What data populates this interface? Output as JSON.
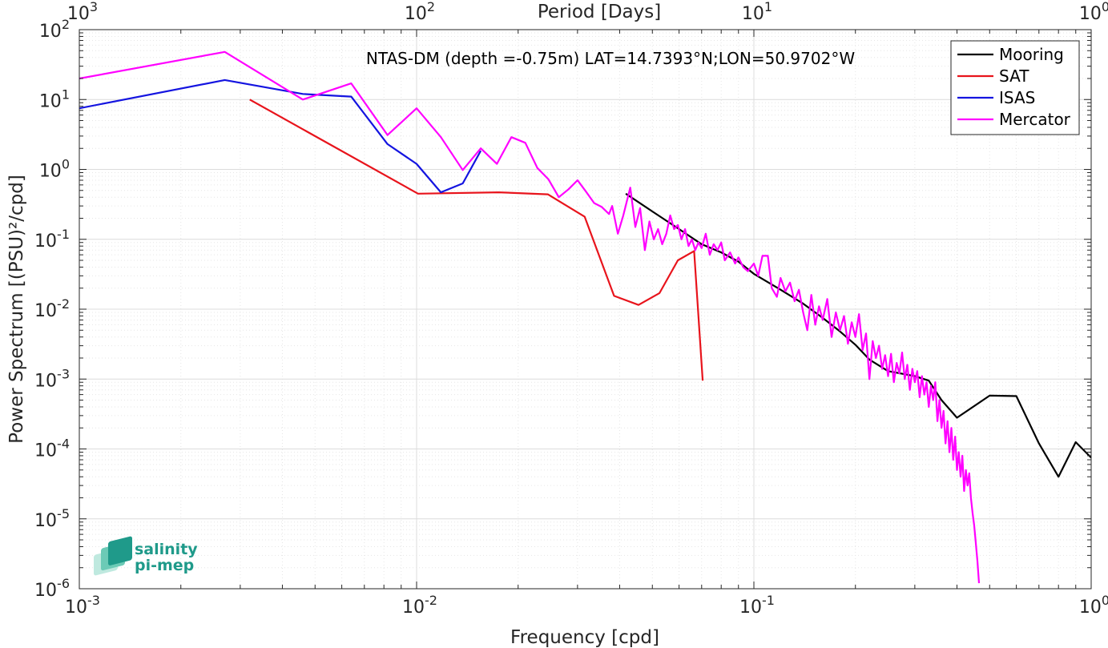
{
  "chart_data": {
    "type": "line",
    "title": "NTAS-DM (depth =-0.75m) LAT=14.7393°N;LON=50.9702°W",
    "xlabel": "Frequency [cpd]",
    "ylabel": "Power Spectrum [(PSU)²/cpd]",
    "x2label": "Period [Days]",
    "xscale": "log",
    "yscale": "log",
    "xlim": [
      0.001,
      1
    ],
    "ylim": [
      1e-06,
      100
    ],
    "grid": true,
    "legend_position": "top-right",
    "x_ticks": [
      {
        "value": 0.001,
        "base": "10",
        "exp": "-3"
      },
      {
        "value": 0.01,
        "base": "10",
        "exp": "-2"
      },
      {
        "value": 0.1,
        "base": "10",
        "exp": "-1"
      },
      {
        "value": 1,
        "base": "10",
        "exp": "0"
      }
    ],
    "x2_ticks": [
      {
        "value": 0.001,
        "base": "10",
        "exp": "3"
      },
      {
        "value": 0.01,
        "base": "10",
        "exp": "2"
      },
      {
        "value": 0.1,
        "base": "10",
        "exp": "1"
      },
      {
        "value": 1,
        "base": "10",
        "exp": "0"
      }
    ],
    "y_ticks": [
      {
        "value": 100,
        "base": "10",
        "exp": "2"
      },
      {
        "value": 10,
        "base": "10",
        "exp": "1"
      },
      {
        "value": 1,
        "base": "10",
        "exp": "0"
      },
      {
        "value": 0.1,
        "base": "10",
        "exp": "-1"
      },
      {
        "value": 0.01,
        "base": "10",
        "exp": "-2"
      },
      {
        "value": 0.001,
        "base": "10",
        "exp": "-3"
      },
      {
        "value": 0.0001,
        "base": "10",
        "exp": "-4"
      },
      {
        "value": 1e-05,
        "base": "10",
        "exp": "-5"
      },
      {
        "value": 1e-06,
        "base": "10",
        "exp": "-6"
      }
    ],
    "series": [
      {
        "name": "Mooring",
        "color": "#000000",
        "points": [
          [
            0.0417,
            0.45
          ],
          [
            0.05,
            0.25
          ],
          [
            0.06,
            0.14
          ],
          [
            0.07,
            0.085
          ],
          [
            0.08,
            0.065
          ],
          [
            0.09,
            0.048
          ],
          [
            0.1,
            0.032
          ],
          [
            0.12,
            0.019
          ],
          [
            0.14,
            0.012
          ],
          [
            0.16,
            0.0075
          ],
          [
            0.18,
            0.0048
          ],
          [
            0.2,
            0.0031
          ],
          [
            0.22,
            0.0019
          ],
          [
            0.25,
            0.0013
          ],
          [
            0.3,
            0.0011
          ],
          [
            0.33,
            0.00095
          ],
          [
            0.36,
            0.0005
          ],
          [
            0.4,
            0.00028
          ],
          [
            0.5,
            0.00058
          ],
          [
            0.6,
            0.00057
          ],
          [
            0.7,
            0.00012
          ],
          [
            0.8,
            4e-05
          ],
          [
            0.9,
            0.000125
          ],
          [
            1.0,
            7.5e-05
          ]
        ]
      },
      {
        "name": "SAT",
        "color": "#e8141c",
        "points": [
          [
            0.0032,
            10.0
          ],
          [
            0.0101,
            0.45
          ],
          [
            0.0175,
            0.47
          ],
          [
            0.0245,
            0.44
          ],
          [
            0.0315,
            0.21
          ],
          [
            0.0385,
            0.0155
          ],
          [
            0.0455,
            0.0115
          ],
          [
            0.0525,
            0.017
          ],
          [
            0.0595,
            0.05
          ],
          [
            0.0665,
            0.068
          ],
          [
            0.0705,
            0.00095
          ]
        ]
      },
      {
        "name": "ISAS",
        "color": "#1414e0",
        "points": [
          [
            0.001,
            7.5
          ],
          [
            0.0027,
            19.0
          ],
          [
            0.0046,
            12.0
          ],
          [
            0.0064,
            11.0
          ],
          [
            0.0082,
            2.3
          ],
          [
            0.01,
            1.2
          ],
          [
            0.0118,
            0.47
          ],
          [
            0.0137,
            0.63
          ],
          [
            0.0155,
            1.85
          ]
        ]
      },
      {
        "name": "Mercator",
        "color": "#ff00ff",
        "points": [
          [
            0.001,
            20.0
          ],
          [
            0.0027,
            48.0
          ],
          [
            0.0046,
            10.0
          ],
          [
            0.0064,
            17.0
          ],
          [
            0.0082,
            3.1
          ],
          [
            0.01,
            7.5
          ],
          [
            0.0118,
            2.9
          ],
          [
            0.0137,
            0.98
          ],
          [
            0.0155,
            2.0
          ],
          [
            0.0173,
            1.2
          ],
          [
            0.0191,
            2.9
          ],
          [
            0.021,
            2.4
          ],
          [
            0.0228,
            1.05
          ],
          [
            0.0246,
            0.72
          ],
          [
            0.0264,
            0.4
          ],
          [
            0.0282,
            0.52
          ],
          [
            0.03,
            0.7
          ],
          [
            0.0318,
            0.48
          ],
          [
            0.0336,
            0.33
          ],
          [
            0.0354,
            0.29
          ],
          [
            0.0372,
            0.23
          ],
          [
            0.038,
            0.3
          ],
          [
            0.0395,
            0.12
          ],
          [
            0.041,
            0.22
          ],
          [
            0.043,
            0.55
          ],
          [
            0.0445,
            0.15
          ],
          [
            0.046,
            0.28
          ],
          [
            0.0475,
            0.07
          ],
          [
            0.049,
            0.18
          ],
          [
            0.0505,
            0.1
          ],
          [
            0.052,
            0.14
          ],
          [
            0.0535,
            0.085
          ],
          [
            0.055,
            0.12
          ],
          [
            0.0565,
            0.22
          ],
          [
            0.058,
            0.14
          ],
          [
            0.0595,
            0.16
          ],
          [
            0.061,
            0.1
          ],
          [
            0.0625,
            0.14
          ],
          [
            0.064,
            0.08
          ],
          [
            0.0655,
            0.1
          ],
          [
            0.067,
            0.07
          ],
          [
            0.0685,
            0.09
          ],
          [
            0.07,
            0.075
          ],
          [
            0.072,
            0.12
          ],
          [
            0.074,
            0.06
          ],
          [
            0.076,
            0.085
          ],
          [
            0.078,
            0.07
          ],
          [
            0.08,
            0.09
          ],
          [
            0.082,
            0.05
          ],
          [
            0.085,
            0.065
          ],
          [
            0.088,
            0.045
          ],
          [
            0.09,
            0.055
          ],
          [
            0.093,
            0.04
          ],
          [
            0.096,
            0.035
          ],
          [
            0.1,
            0.045
          ],
          [
            0.103,
            0.03
          ],
          [
            0.106,
            0.058
          ],
          [
            0.11,
            0.058
          ],
          [
            0.113,
            0.02
          ],
          [
            0.117,
            0.015
          ],
          [
            0.12,
            0.028
          ],
          [
            0.124,
            0.018
          ],
          [
            0.128,
            0.024
          ],
          [
            0.132,
            0.013
          ],
          [
            0.136,
            0.019
          ],
          [
            0.14,
            0.009
          ],
          [
            0.144,
            0.005
          ],
          [
            0.148,
            0.016
          ],
          [
            0.152,
            0.006
          ],
          [
            0.156,
            0.011
          ],
          [
            0.16,
            0.007
          ],
          [
            0.165,
            0.014
          ],
          [
            0.17,
            0.004
          ],
          [
            0.175,
            0.009
          ],
          [
            0.18,
            0.005
          ],
          [
            0.185,
            0.008
          ],
          [
            0.19,
            0.0032
          ],
          [
            0.195,
            0.0065
          ],
          [
            0.2,
            0.004
          ],
          [
            0.205,
            0.0085
          ],
          [
            0.21,
            0.0026
          ],
          [
            0.215,
            0.0045
          ],
          [
            0.22,
            0.001
          ],
          [
            0.225,
            0.0035
          ],
          [
            0.23,
            0.002
          ],
          [
            0.235,
            0.003
          ],
          [
            0.24,
            0.0014
          ],
          [
            0.245,
            0.0022
          ],
          [
            0.25,
            0.0011
          ],
          [
            0.255,
            0.0023
          ],
          [
            0.26,
            0.0009
          ],
          [
            0.265,
            0.0017
          ],
          [
            0.27,
            0.0012
          ],
          [
            0.275,
            0.0024
          ],
          [
            0.28,
            0.001
          ],
          [
            0.285,
            0.0016
          ],
          [
            0.29,
            0.0007
          ],
          [
            0.295,
            0.0014
          ],
          [
            0.3,
            0.0009
          ],
          [
            0.305,
            0.0013
          ],
          [
            0.31,
            0.00055
          ],
          [
            0.315,
            0.0011
          ],
          [
            0.32,
            0.0006
          ],
          [
            0.325,
            0.0009
          ],
          [
            0.33,
            0.0004
          ],
          [
            0.335,
            0.0008
          ],
          [
            0.34,
            0.0005
          ],
          [
            0.345,
            0.0009
          ],
          [
            0.35,
            0.00025
          ],
          [
            0.355,
            0.0005
          ],
          [
            0.36,
            0.0002
          ],
          [
            0.365,
            0.00035
          ],
          [
            0.37,
            0.00012
          ],
          [
            0.375,
            0.00025
          ],
          [
            0.38,
            9e-05
          ],
          [
            0.385,
            0.0002
          ],
          [
            0.39,
            7e-05
          ],
          [
            0.395,
            0.00015
          ],
          [
            0.4,
            5e-05
          ],
          [
            0.405,
            9e-05
          ],
          [
            0.41,
            4e-05
          ],
          [
            0.415,
            8e-05
          ],
          [
            0.42,
            2.5e-05
          ],
          [
            0.425,
            5e-05
          ],
          [
            0.43,
            3e-05
          ],
          [
            0.435,
            4.5e-05
          ],
          [
            0.44,
            2e-05
          ],
          [
            0.445,
            1.2e-05
          ],
          [
            0.45,
            8e-06
          ],
          [
            0.455,
            4.5e-06
          ],
          [
            0.46,
            2.5e-06
          ],
          [
            0.465,
            1.2e-06
          ]
        ]
      }
    ],
    "logo": {
      "line1": "salinity",
      "line2": "pi-mep"
    }
  }
}
